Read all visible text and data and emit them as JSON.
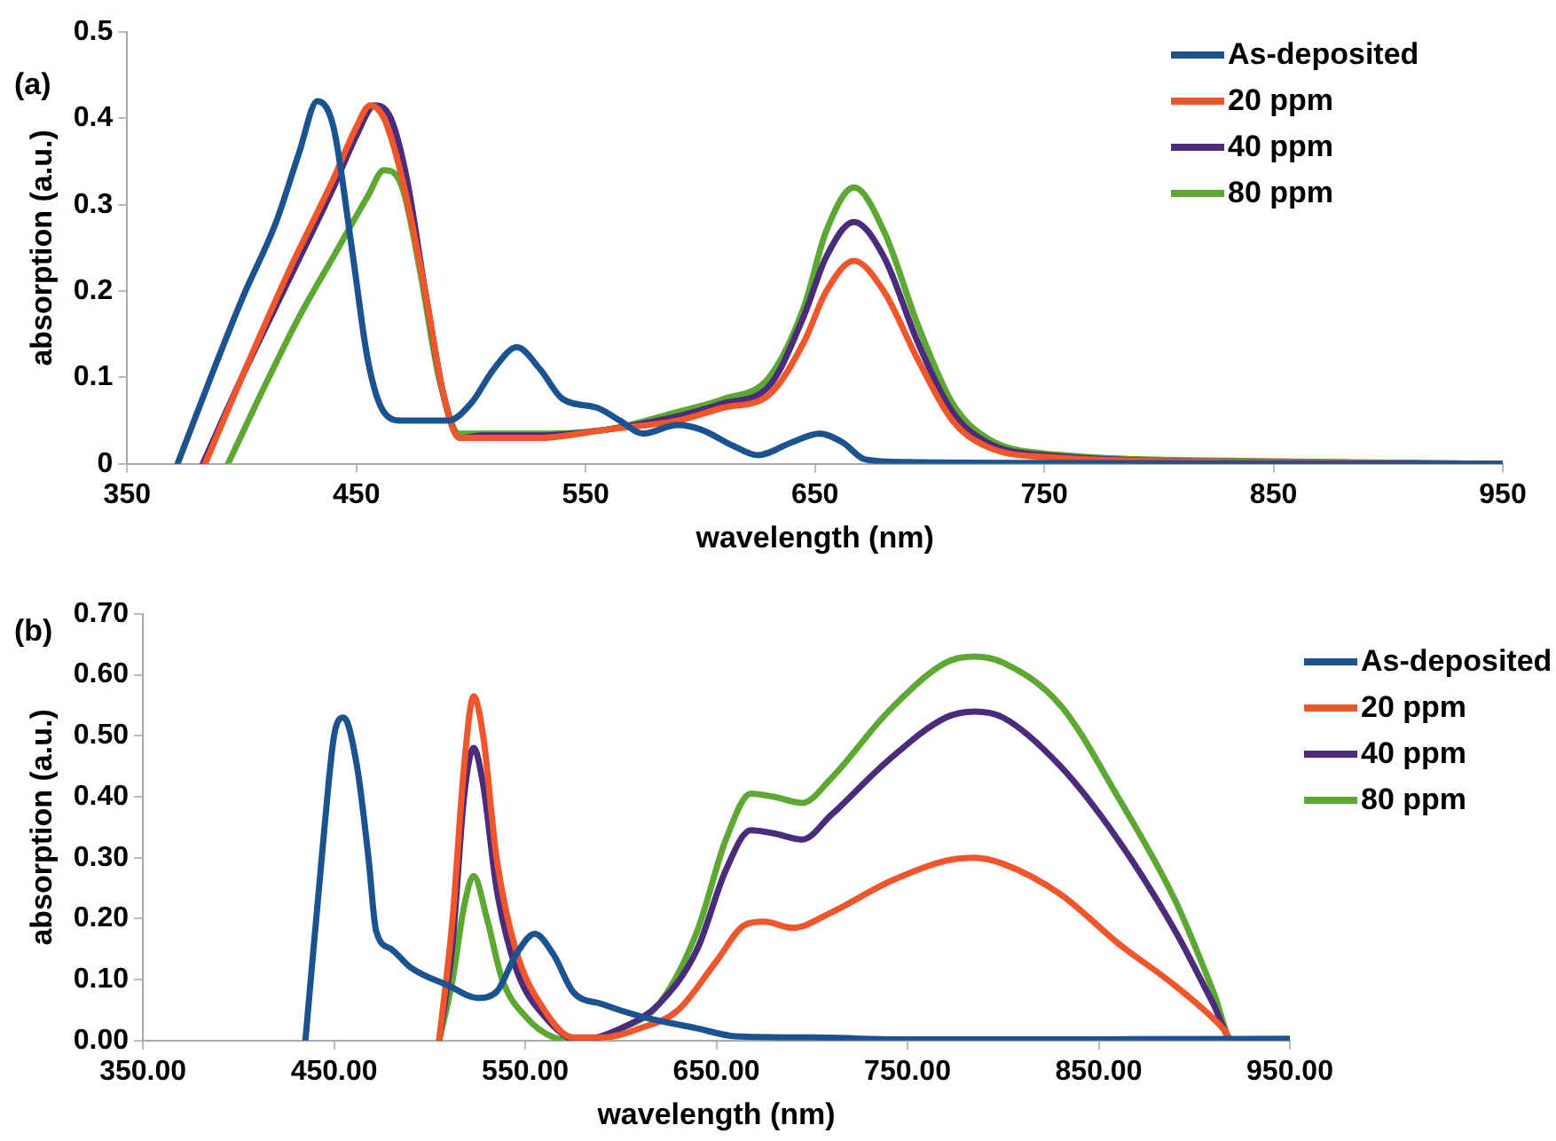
{
  "chart_data": [
    {
      "type": "line",
      "title": "(a)",
      "xlabel": "wavelength (nm)",
      "ylabel": "absorption (a.u.)",
      "xlim": [
        350,
        950
      ],
      "xticks": [
        350,
        450,
        550,
        650,
        750,
        850,
        950
      ],
      "ylim": [
        0,
        0.5
      ],
      "yticks": [
        0,
        0.1,
        0.2,
        0.3,
        0.4,
        0.5
      ],
      "grid": false,
      "legend": "top right",
      "marker": "none",
      "line_style": "solid",
      "series": [
        {
          "name": "As-deposited",
          "color": "#1b5391",
          "x": [
            372,
            385,
            400,
            415,
            425,
            433,
            440,
            448,
            455,
            462,
            470,
            490,
            500,
            510,
            520,
            530,
            540,
            555,
            565,
            575,
            590,
            600,
            615,
            625,
            640,
            652,
            662,
            672,
            690,
            750,
            950
          ],
          "values": [
            0,
            0.09,
            0.19,
            0.28,
            0.36,
            0.42,
            0.39,
            0.25,
            0.12,
            0.06,
            0.05,
            0.05,
            0.07,
            0.11,
            0.135,
            0.11,
            0.075,
            0.065,
            0.05,
            0.035,
            0.045,
            0.04,
            0.02,
            0.01,
            0.025,
            0.035,
            0.025,
            0.005,
            0.002,
            0.001,
            0
          ]
        },
        {
          "name": "20 ppm",
          "color": "#f0552b",
          "x": [
            384,
            400,
            420,
            440,
            450,
            456,
            462,
            470,
            480,
            488,
            495,
            505,
            530,
            560,
            590,
            610,
            630,
            645,
            655,
            667,
            680,
            695,
            710,
            725,
            750,
            850,
            950
          ],
          "values": [
            0,
            0.1,
            0.22,
            0.33,
            0.39,
            0.415,
            0.4,
            0.33,
            0.2,
            0.08,
            0.03,
            0.03,
            0.03,
            0.04,
            0.05,
            0.065,
            0.08,
            0.14,
            0.2,
            0.235,
            0.2,
            0.12,
            0.05,
            0.02,
            0.008,
            0.002,
            0
          ]
        },
        {
          "name": "40 ppm",
          "color": "#4b2b7b",
          "x": [
            383,
            400,
            420,
            440,
            450,
            458,
            465,
            472,
            480,
            488,
            495,
            505,
            530,
            560,
            590,
            610,
            630,
            645,
            655,
            667,
            680,
            695,
            710,
            725,
            750,
            850,
            950
          ],
          "values": [
            0,
            0.1,
            0.21,
            0.32,
            0.38,
            0.415,
            0.4,
            0.33,
            0.2,
            0.08,
            0.03,
            0.033,
            0.033,
            0.04,
            0.055,
            0.07,
            0.09,
            0.17,
            0.24,
            0.28,
            0.24,
            0.14,
            0.06,
            0.025,
            0.01,
            0.002,
            0
          ]
        },
        {
          "name": "80 ppm",
          "color": "#5ca833",
          "x": [
            394,
            410,
            425,
            440,
            455,
            462,
            470,
            478,
            486,
            495,
            505,
            530,
            560,
            590,
            610,
            630,
            645,
            655,
            667,
            680,
            695,
            710,
            725,
            750,
            850,
            950
          ],
          "values": [
            0,
            0.09,
            0.17,
            0.24,
            0.31,
            0.34,
            0.32,
            0.22,
            0.1,
            0.035,
            0.035,
            0.035,
            0.04,
            0.06,
            0.075,
            0.1,
            0.18,
            0.27,
            0.32,
            0.27,
            0.16,
            0.07,
            0.03,
            0.012,
            0.003,
            0
          ]
        }
      ]
    },
    {
      "type": "line",
      "title": "(b)",
      "xlabel": "wavelength (nm)",
      "ylabel": "absorption (a.u.)",
      "xlim": [
        350,
        950
      ],
      "xticks": [
        {
          "value": 350,
          "label": "350.00"
        },
        {
          "value": 450,
          "label": "450.00"
        },
        {
          "value": 550,
          "label": "550.00"
        },
        {
          "value": 650,
          "label": "650.00"
        },
        {
          "value": 750,
          "label": "750.00"
        },
        {
          "value": 850,
          "label": "850.00"
        },
        {
          "value": 950,
          "label": "950.00"
        }
      ],
      "ylim": [
        0,
        0.7
      ],
      "yticks": [
        {
          "value": 0,
          "label": "0.00"
        },
        {
          "value": 0.1,
          "label": "0.10"
        },
        {
          "value": 0.2,
          "label": "0.20"
        },
        {
          "value": 0.3,
          "label": "0.30"
        },
        {
          "value": 0.4,
          "label": "0.40"
        },
        {
          "value": 0.5,
          "label": "0.50"
        },
        {
          "value": 0.6,
          "label": "0.60"
        },
        {
          "value": 0.7,
          "label": "0.70"
        }
      ],
      "grid": false,
      "legend": "right",
      "marker": "none",
      "line_style": "solid",
      "series": [
        {
          "name": "As-deposited",
          "color": "#1b5391",
          "x": [
            435,
            445,
            450,
            455,
            462,
            468,
            472,
            480,
            490,
            510,
            525,
            535,
            545,
            555,
            565,
            575,
            590,
            610,
            640,
            660,
            700,
            750,
            850,
            950
          ],
          "values": [
            0,
            0.35,
            0.5,
            0.53,
            0.45,
            0.3,
            0.18,
            0.15,
            0.12,
            0.09,
            0.07,
            0.08,
            0.14,
            0.175,
            0.14,
            0.08,
            0.06,
            0.04,
            0.02,
            0.007,
            0.005,
            0.002,
            0.002,
            0.003
          ]
        },
        {
          "name": "20 ppm",
          "color": "#f0552b",
          "x": [
            505,
            512,
            518,
            523,
            528,
            535,
            545,
            560,
            575,
            590,
            610,
            630,
            650,
            665,
            675,
            690,
            710,
            740,
            770,
            785,
            800,
            830,
            860,
            890,
            915,
            920,
            950
          ],
          "values": [
            0,
            0.2,
            0.45,
            0.565,
            0.5,
            0.3,
            0.15,
            0.05,
            0.005,
            0.005,
            0.02,
            0.05,
            0.13,
            0.19,
            0.195,
            0.185,
            0.21,
            0.26,
            0.295,
            0.3,
            0.29,
            0.24,
            0.16,
            0.09,
            0.02,
            0,
            0
          ]
        },
        {
          "name": "40 ppm",
          "color": "#4b2b7b",
          "x": [
            505,
            512,
            518,
            523,
            528,
            535,
            545,
            560,
            578,
            600,
            620,
            640,
            655,
            668,
            680,
            695,
            710,
            740,
            770,
            785,
            800,
            830,
            860,
            890,
            910,
            920,
            950
          ],
          "values": [
            0,
            0.16,
            0.4,
            0.48,
            0.42,
            0.25,
            0.12,
            0.04,
            0,
            0.02,
            0.06,
            0.15,
            0.28,
            0.345,
            0.34,
            0.33,
            0.37,
            0.46,
            0.53,
            0.54,
            0.53,
            0.45,
            0.33,
            0.18,
            0.06,
            0,
            0
          ]
        },
        {
          "name": "80 ppm",
          "color": "#5ca833",
          "x": [
            505,
            512,
            518,
            523,
            530,
            538,
            550,
            565,
            578,
            600,
            620,
            640,
            655,
            668,
            680,
            695,
            710,
            740,
            770,
            785,
            800,
            830,
            860,
            890,
            910,
            920,
            950
          ],
          "values": [
            0,
            0.1,
            0.22,
            0.27,
            0.2,
            0.1,
            0.04,
            0.005,
            0,
            0.02,
            0.06,
            0.18,
            0.33,
            0.405,
            0.4,
            0.39,
            0.43,
            0.54,
            0.62,
            0.63,
            0.62,
            0.55,
            0.4,
            0.23,
            0.08,
            0,
            0
          ]
        }
      ]
    }
  ]
}
